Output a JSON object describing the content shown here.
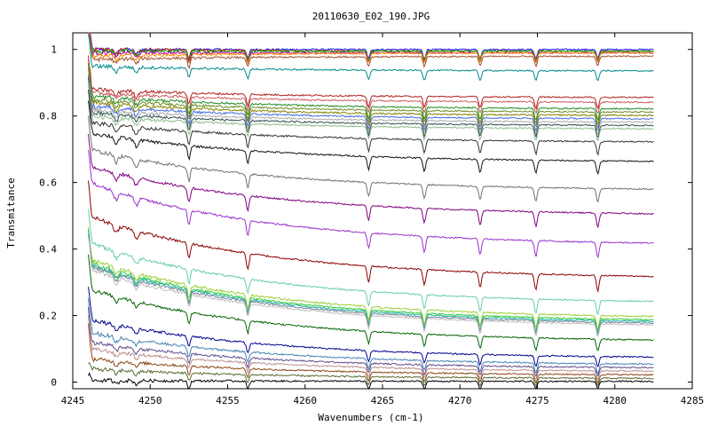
{
  "chart_data": {
    "type": "line",
    "title": "20110630_E02_190.JPG",
    "xlabel": "Wavenumbers (cm-1)",
    "ylabel": "Transmitance",
    "xlim": [
      4245,
      4285
    ],
    "ylim": [
      -0.02,
      1.05
    ],
    "x_ticks": [
      4245,
      4250,
      4255,
      4260,
      4265,
      4270,
      4275,
      4280,
      4285
    ],
    "x_tick_labels": [
      "4245",
      "4250",
      "4255",
      "4260",
      "4265",
      "4270",
      "4275",
      "4280",
      "4285"
    ],
    "y_ticks": [
      0,
      0.2,
      0.4,
      0.6,
      0.8,
      1
    ],
    "y_tick_labels": [
      "0",
      "0.2",
      "0.4",
      "0.6",
      "0.8",
      "1"
    ],
    "grid": false,
    "data_x_range": [
      4246,
      4282.5
    ],
    "absorption_lines": [
      4252.5,
      4256.3,
      4264.1,
      4267.7,
      4271.3,
      4274.9,
      4278.9
    ],
    "weak_lines": [
      4247.8,
      4249.1
    ],
    "series_baselines": [
      {
        "color": "#1a1aff",
        "start": 1.0,
        "end": 1.0
      },
      {
        "color": "#cc2200",
        "start": 1.0,
        "end": 0.995
      },
      {
        "color": "#00aa00",
        "start": 0.995,
        "end": 0.995
      },
      {
        "color": "#aa00aa",
        "start": 0.99,
        "end": 0.99
      },
      {
        "color": "#ff8800",
        "start": 0.98,
        "end": 0.99
      },
      {
        "color": "#a0522d",
        "start": 0.97,
        "end": 0.98
      },
      {
        "color": "#008b8b",
        "start": 0.95,
        "end": 0.935
      },
      {
        "color": "#b22222",
        "start": 0.88,
        "end": 0.855
      },
      {
        "color": "#cd5c5c",
        "start": 0.87,
        "end": 0.84
      },
      {
        "color": "#228b22",
        "start": 0.86,
        "end": 0.82
      },
      {
        "color": "#6b8e23",
        "start": 0.85,
        "end": 0.81
      },
      {
        "color": "#808000",
        "start": 0.84,
        "end": 0.8
      },
      {
        "color": "#4169e1",
        "start": 0.83,
        "end": 0.79
      },
      {
        "color": "#a9a9a9",
        "start": 0.82,
        "end": 0.78
      },
      {
        "color": "#2f4f4f",
        "start": 0.81,
        "end": 0.77
      },
      {
        "color": "#8fbc8f",
        "start": 0.8,
        "end": 0.76
      },
      {
        "color": "#333333",
        "start": 0.78,
        "end": 0.72
      },
      {
        "color": "#111111",
        "start": 0.75,
        "end": 0.66
      },
      {
        "color": "#707070",
        "start": 0.7,
        "end": 0.575
      },
      {
        "color": "#800080",
        "start": 0.65,
        "end": 0.5
      },
      {
        "color": "#9932cc",
        "start": 0.6,
        "end": 0.41
      },
      {
        "color": "#8b0000",
        "start": 0.5,
        "end": 0.31
      },
      {
        "color": "#66cdaa",
        "start": 0.42,
        "end": 0.235
      },
      {
        "color": "#9acd32",
        "start": 0.37,
        "end": 0.19
      },
      {
        "color": "#32cd32",
        "start": 0.36,
        "end": 0.18
      },
      {
        "color": "#20b2aa",
        "start": 0.355,
        "end": 0.175
      },
      {
        "color": "#778899",
        "start": 0.35,
        "end": 0.17
      },
      {
        "color": "#c0c0c0",
        "start": 0.34,
        "end": 0.165
      },
      {
        "color": "#006400",
        "start": 0.28,
        "end": 0.12
      },
      {
        "color": "#00008b",
        "start": 0.19,
        "end": 0.07
      },
      {
        "color": "#4682b4",
        "start": 0.15,
        "end": 0.05
      },
      {
        "color": "#5f4b8b",
        "start": 0.12,
        "end": 0.04
      },
      {
        "color": "#bc8f8f",
        "start": 0.1,
        "end": 0.03
      },
      {
        "color": "#8b4513",
        "start": 0.07,
        "end": 0.02
      },
      {
        "color": "#556b2f",
        "start": 0.04,
        "end": 0.01
      },
      {
        "color": "#000000",
        "start": 0.005,
        "end": 0.002
      }
    ]
  }
}
